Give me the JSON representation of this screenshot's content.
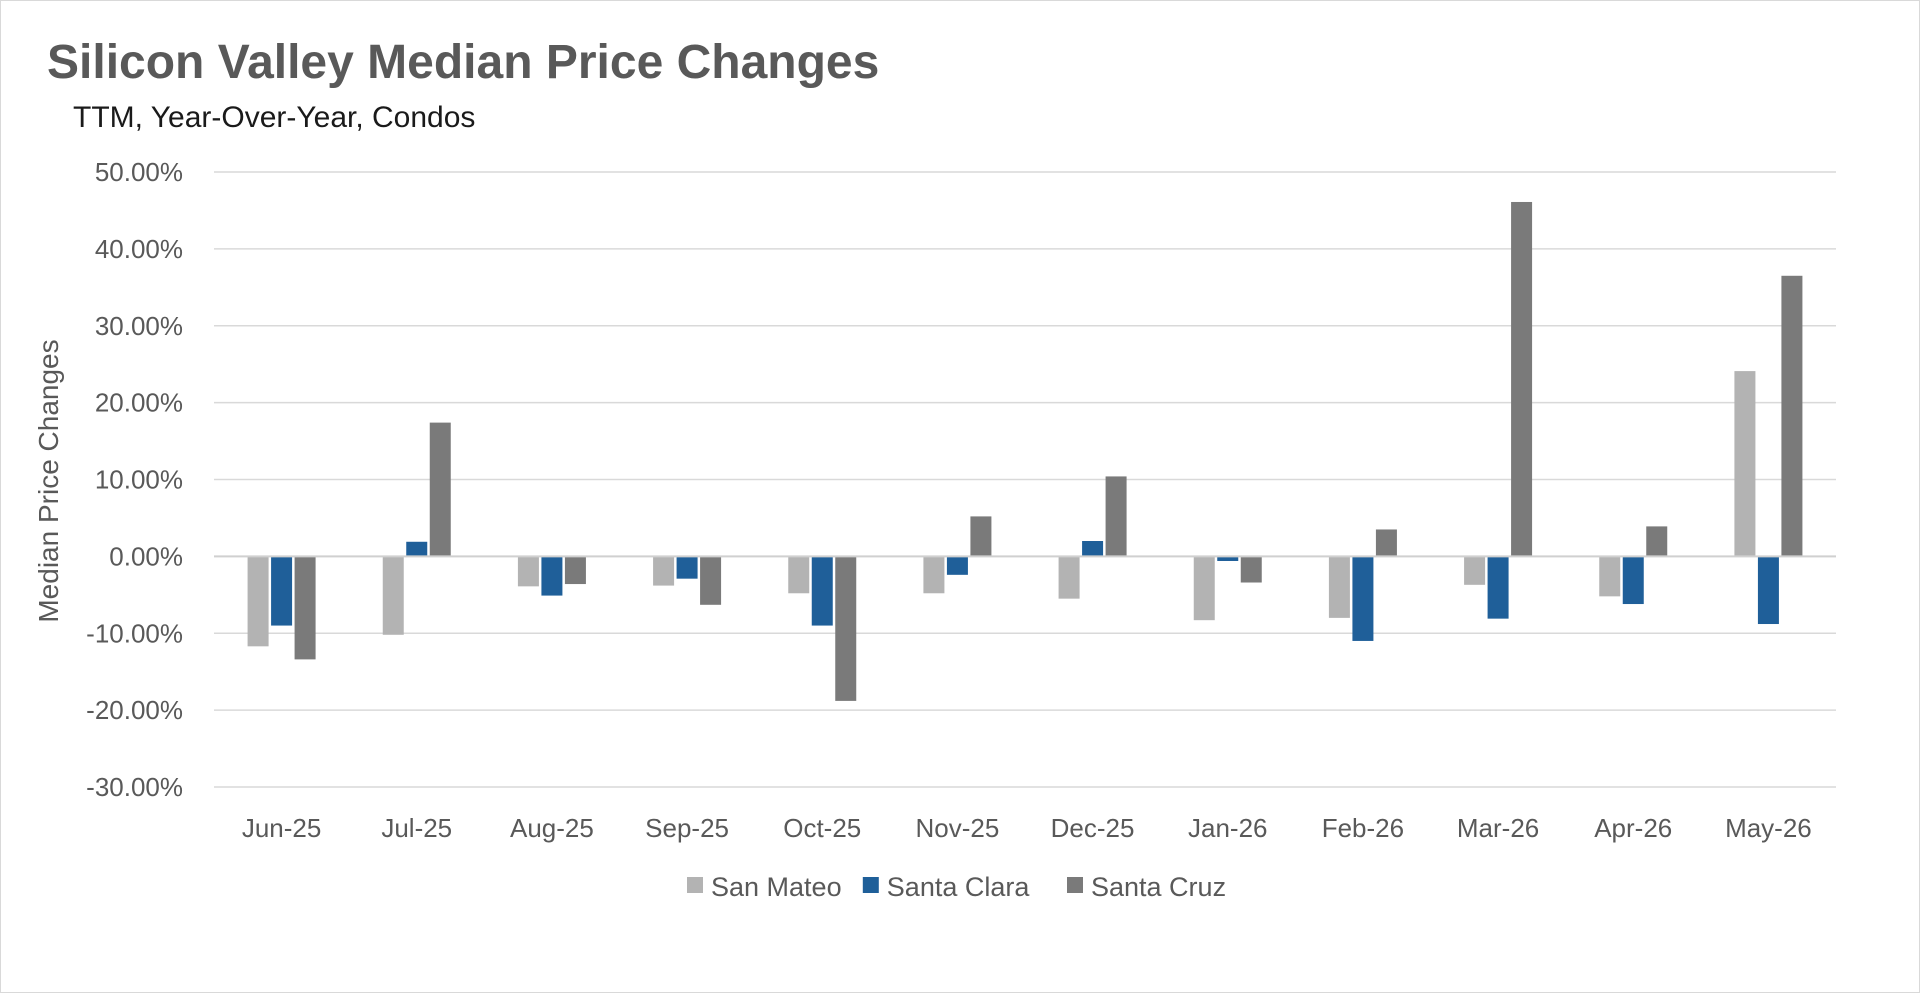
{
  "chart_data": {
    "type": "bar",
    "title": "Silicon Valley Median Price Changes",
    "subtitle": "TTM, Year-Over-Year, Condos",
    "xlabel": "",
    "ylabel": "Median Price Changes",
    "ylim": [
      -0.3,
      0.5
    ],
    "yticks": [
      0.5,
      0.4,
      0.3,
      0.2,
      0.1,
      0.0,
      -0.1,
      -0.2,
      -0.3
    ],
    "ytick_labels": [
      "50.00%",
      "40.00%",
      "30.00%",
      "20.00%",
      "10.00%",
      "0.00%",
      "-10.00%",
      "-20.00%",
      "-30.00%"
    ],
    "grid": true,
    "legend_position": "bottom",
    "categories": [
      "Jun-25",
      "Jul-25",
      "Aug-25",
      "Sep-25",
      "Oct-25",
      "Nov-25",
      "Dec-25",
      "Jan-26",
      "Feb-26",
      "Mar-26",
      "Apr-26",
      "May-26"
    ],
    "series": [
      {
        "name": "San Mateo",
        "color": "#b3b3b3",
        "values": [
          -0.117,
          -0.102,
          -0.039,
          -0.038,
          -0.048,
          -0.048,
          -0.055,
          -0.083,
          -0.08,
          -0.037,
          -0.052,
          0.241
        ]
      },
      {
        "name": "Santa Clara",
        "color": "#1f5f99",
        "values": [
          -0.09,
          0.019,
          -0.051,
          -0.029,
          -0.09,
          -0.024,
          0.02,
          -0.006,
          -0.11,
          -0.081,
          -0.062,
          -0.088
        ]
      },
      {
        "name": "Santa Cruz",
        "color": "#7a7a7a",
        "values": [
          -0.134,
          0.174,
          -0.036,
          -0.063,
          -0.188,
          0.052,
          0.104,
          -0.034,
          0.035,
          0.461,
          0.039,
          0.365
        ]
      }
    ]
  }
}
